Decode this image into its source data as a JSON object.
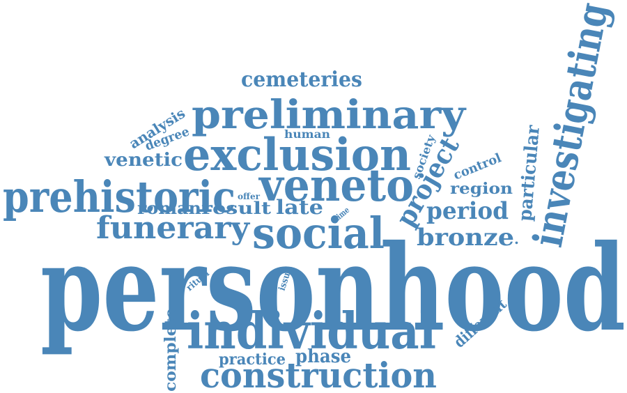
{
  "word_cloud": {
    "color": "#4a86b8",
    "words": [
      {
        "text": "personhood"
      },
      {
        "text": "individual"
      },
      {
        "text": "construction"
      },
      {
        "text": "exclusion"
      },
      {
        "text": "preliminary"
      },
      {
        "text": "prehistoric"
      },
      {
        "text": "veneto"
      },
      {
        "text": "social"
      },
      {
        "text": "funerary"
      },
      {
        "text": "investigating"
      },
      {
        "text": "project"
      },
      {
        "text": "cemeteries"
      },
      {
        "text": "period"
      },
      {
        "text": "bronze"
      },
      {
        "text": "roman"
      },
      {
        "text": "result"
      },
      {
        "text": "late"
      },
      {
        "text": "venetic"
      },
      {
        "text": "analysis"
      },
      {
        "text": "degree"
      },
      {
        "text": "human"
      },
      {
        "text": "society"
      },
      {
        "text": "control"
      },
      {
        "text": "region"
      },
      {
        "text": "particular"
      },
      {
        "text": "different"
      },
      {
        "text": "complete"
      },
      {
        "text": "practice"
      },
      {
        "text": "phase"
      },
      {
        "text": "ritual"
      },
      {
        "text": "issue"
      },
      {
        "text": "offer"
      },
      {
        "text": "time"
      }
    ]
  }
}
